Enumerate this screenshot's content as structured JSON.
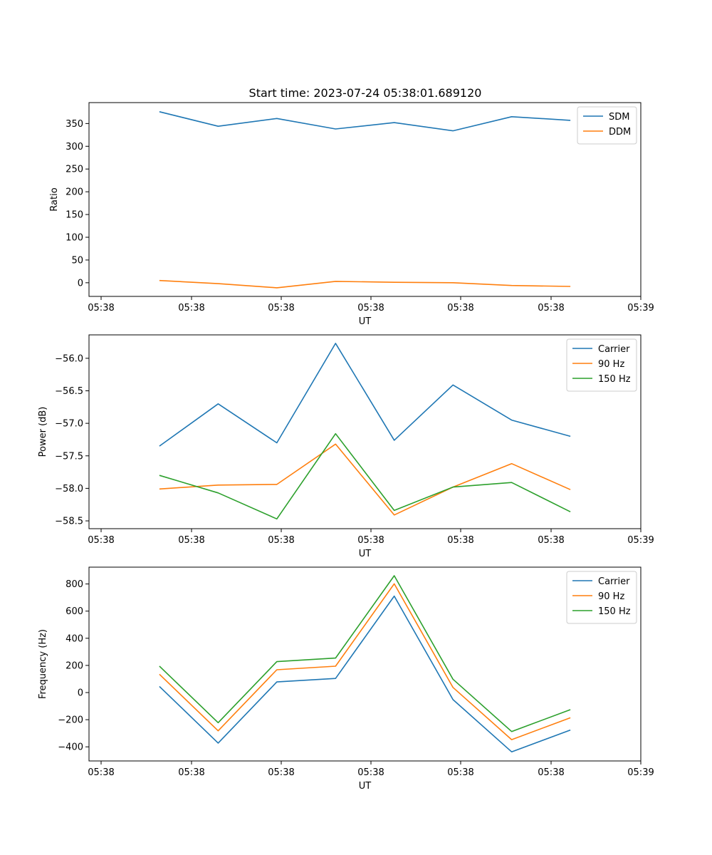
{
  "figure_title": "Start time: 2023-07-24 05:38:01.689120",
  "chart_data": [
    {
      "type": "line",
      "title": "Start time: 2023-07-24 05:38:01.689120",
      "xlabel": "UT",
      "ylabel": "Ratio",
      "x_tick_labels": [
        "05:38",
        "05:38",
        "05:38",
        "05:38",
        "05:38",
        "05:38",
        "05:38",
        "05:39"
      ],
      "y_ticks": [
        0,
        50,
        100,
        150,
        200,
        250,
        300,
        350
      ],
      "y_tick_labels": [
        "0",
        "50",
        "100",
        "150",
        "200",
        "250",
        "300",
        "350"
      ],
      "ylim": [
        -30,
        396
      ],
      "x": [
        1,
        2,
        3,
        4,
        5,
        6,
        7,
        8
      ],
      "xlim": [
        -0.2,
        9.2
      ],
      "legend": "top-right",
      "series": [
        {
          "name": "SDM",
          "color": "#1f77b4",
          "values": [
            376,
            344,
            361,
            338,
            352,
            334,
            365,
            357
          ]
        },
        {
          "name": "DDM",
          "color": "#ff7f0e",
          "values": [
            5,
            -2,
            -11,
            3,
            1,
            0,
            -6,
            -8
          ]
        }
      ]
    },
    {
      "type": "line",
      "title": "",
      "xlabel": "UT",
      "ylabel": "Power (dB)",
      "x_tick_labels": [
        "05:38",
        "05:38",
        "05:38",
        "05:38",
        "05:38",
        "05:38",
        "05:38",
        "05:39"
      ],
      "y_ticks": [
        -56.0,
        -56.5,
        -57.0,
        -57.5,
        -58.0,
        -58.5
      ],
      "y_tick_labels": [
        "−56.0",
        "−56.5",
        "−57.0",
        "−57.5",
        "−58.0",
        "−58.5"
      ],
      "ylim": [
        -58.62,
        -55.64
      ],
      "x": [
        1,
        2,
        3,
        4,
        5,
        6,
        7,
        8
      ],
      "xlim": [
        -0.2,
        9.2
      ],
      "legend": "top-right",
      "series": [
        {
          "name": "Carrier",
          "color": "#1f77b4",
          "values": [
            -57.35,
            -56.7,
            -57.3,
            -55.77,
            -57.26,
            -56.41,
            -56.95,
            -57.2
          ]
        },
        {
          "name": "90 Hz",
          "color": "#ff7f0e",
          "values": [
            -58.01,
            -57.95,
            -57.94,
            -57.32,
            -58.41,
            -57.98,
            -57.62,
            -58.02
          ]
        },
        {
          "name": "150 Hz",
          "color": "#2ca02c",
          "values": [
            -57.8,
            -58.07,
            -58.47,
            -57.16,
            -58.34,
            -57.98,
            -57.91,
            -58.36
          ]
        }
      ]
    },
    {
      "type": "line",
      "title": "",
      "xlabel": "UT",
      "ylabel": "Frequency (Hz)",
      "x_tick_labels": [
        "05:38",
        "05:38",
        "05:38",
        "05:38",
        "05:38",
        "05:38",
        "05:38",
        "05:39"
      ],
      "y_ticks": [
        800,
        600,
        400,
        200,
        0,
        -200,
        -400
      ],
      "y_tick_labels": [
        "800",
        "600",
        "400",
        "200",
        "0",
        "−200",
        "−400"
      ],
      "ylim": [
        -504,
        924
      ],
      "x": [
        1,
        2,
        3,
        4,
        5,
        6,
        7,
        8
      ],
      "xlim": [
        -0.2,
        9.2
      ],
      "legend": "top-right",
      "series": [
        {
          "name": "Carrier",
          "color": "#1f77b4",
          "values": [
            45,
            -372,
            78,
            104,
            711,
            -52,
            -437,
            -276
          ]
        },
        {
          "name": "90 Hz",
          "color": "#ff7f0e",
          "values": [
            135,
            -282,
            168,
            194,
            801,
            38,
            -347,
            -186
          ]
        },
        {
          "name": "150 Hz",
          "color": "#2ca02c",
          "values": [
            195,
            -222,
            228,
            254,
            861,
            98,
            -287,
            -126
          ]
        }
      ]
    }
  ]
}
